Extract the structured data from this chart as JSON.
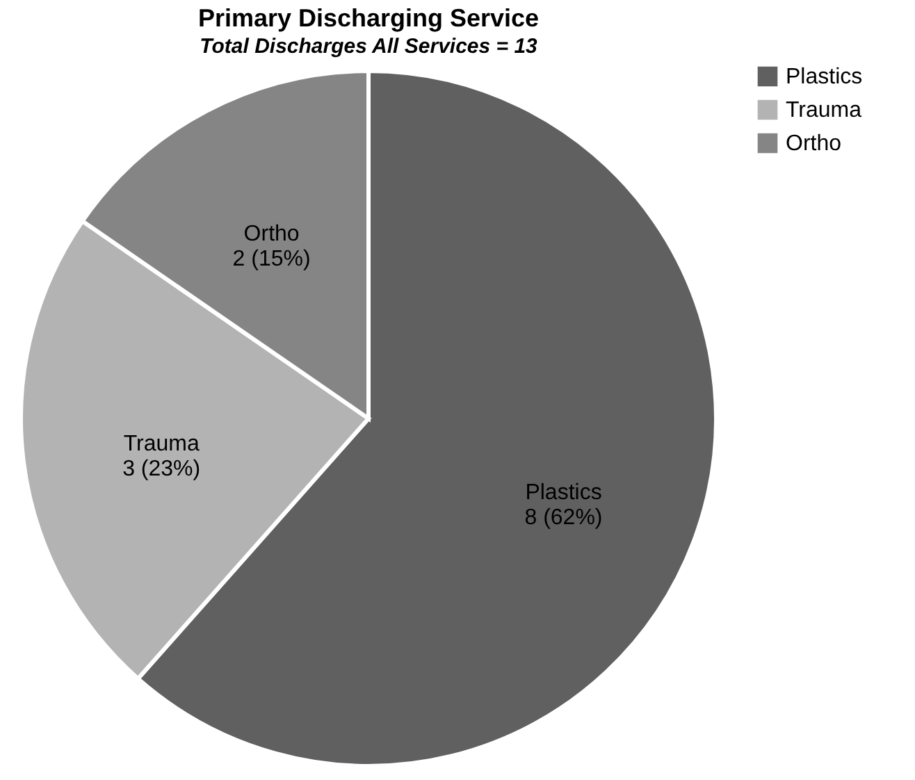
{
  "chart_data": {
    "type": "pie",
    "title": "Primary Discharging Service",
    "subtitle": "Total Discharges All Services = 13",
    "categories": [
      "Plastics",
      "Trauma",
      "Ortho"
    ],
    "values": [
      8,
      3,
      2
    ],
    "value_labels": [
      "8 (62%)",
      "3 (23%)",
      "2 (15%)"
    ],
    "colors": [
      "#606060",
      "#b3b3b3",
      "#858585"
    ],
    "legend": "right"
  }
}
